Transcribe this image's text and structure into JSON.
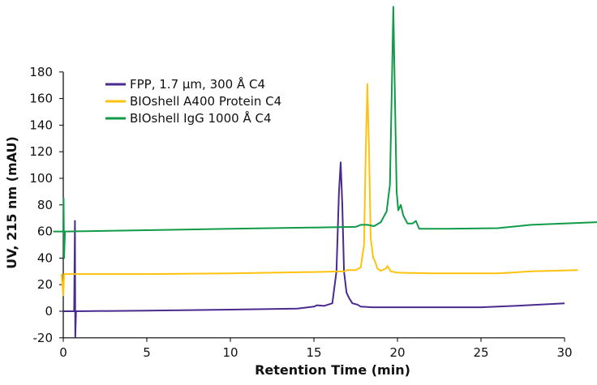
{
  "chart_data": {
    "type": "line",
    "title": "",
    "xlabel": "Retention Time (min)",
    "ylabel": "UV, 215 nm (mAU)",
    "xlim": [
      0,
      32
    ],
    "ylim": [
      -20,
      230
    ],
    "xticks": [
      "0",
      "5",
      "10",
      "15",
      "20",
      "25",
      "30"
    ],
    "yticks": [
      "-20",
      "0",
      "20",
      "40",
      "60",
      "80",
      "100",
      "120",
      "140",
      "160",
      "180"
    ],
    "grid": false,
    "legend_position": "top-left",
    "series": [
      {
        "name": "FPP, 1.7 µm, 300 Å C4",
        "color": "#4b2a8f",
        "points": [
          [
            0,
            0
          ],
          [
            0.65,
            0
          ],
          [
            0.7,
            68
          ],
          [
            0.72,
            -20
          ],
          [
            0.76,
            0
          ],
          [
            5,
            0.5
          ],
          [
            10,
            1.2
          ],
          [
            14,
            2
          ],
          [
            15,
            3.5
          ],
          [
            15.2,
            4.5
          ],
          [
            15.6,
            4
          ],
          [
            16.1,
            6
          ],
          [
            16.35,
            30
          ],
          [
            16.5,
            90
          ],
          [
            16.6,
            112
          ],
          [
            16.7,
            80
          ],
          [
            16.8,
            30
          ],
          [
            16.95,
            14
          ],
          [
            17.1,
            10
          ],
          [
            17.3,
            6
          ],
          [
            17.6,
            5
          ],
          [
            17.8,
            3.5
          ],
          [
            18.5,
            3
          ],
          [
            22,
            3
          ],
          [
            25,
            3
          ],
          [
            27,
            4
          ],
          [
            30,
            6
          ]
        ]
      },
      {
        "name": "BIOshell A400 Protein C4",
        "color": "#ffc20e",
        "points": [
          [
            -0.1,
            28
          ],
          [
            0,
            12
          ],
          [
            0.05,
            28
          ],
          [
            5,
            28
          ],
          [
            10,
            28.5
          ],
          [
            15,
            29.5
          ],
          [
            16.8,
            30
          ],
          [
            17,
            31
          ],
          [
            17.5,
            31
          ],
          [
            17.8,
            33
          ],
          [
            18.0,
            50
          ],
          [
            18.1,
            120
          ],
          [
            18.2,
            171
          ],
          [
            18.3,
            120
          ],
          [
            18.4,
            55
          ],
          [
            18.55,
            40
          ],
          [
            18.65,
            38
          ],
          [
            18.8,
            32
          ],
          [
            19.0,
            30.5
          ],
          [
            19.3,
            32
          ],
          [
            19.4,
            34
          ],
          [
            19.6,
            30
          ],
          [
            20,
            29
          ],
          [
            22,
            28.5
          ],
          [
            26,
            28.5
          ],
          [
            28,
            30
          ],
          [
            30.8,
            31
          ]
        ]
      },
      {
        "name": "BIOshell IgG 1000 Å C4",
        "color": "#119a48",
        "points": [
          [
            -0.6,
            60
          ],
          [
            0,
            60
          ],
          [
            0.02,
            85
          ],
          [
            0.05,
            40
          ],
          [
            0.1,
            60
          ],
          [
            5,
            61
          ],
          [
            10,
            62
          ],
          [
            15,
            63
          ],
          [
            17.5,
            63.5
          ],
          [
            17.8,
            65
          ],
          [
            18.2,
            65
          ],
          [
            18.6,
            64
          ],
          [
            19.0,
            67
          ],
          [
            19.35,
            75
          ],
          [
            19.55,
            95
          ],
          [
            19.65,
            160
          ],
          [
            19.75,
            229
          ],
          [
            19.85,
            160
          ],
          [
            19.95,
            90
          ],
          [
            20.05,
            76
          ],
          [
            20.2,
            80
          ],
          [
            20.35,
            72
          ],
          [
            20.6,
            66
          ],
          [
            20.9,
            66
          ],
          [
            21.1,
            68
          ],
          [
            21.3,
            62
          ],
          [
            23,
            62
          ],
          [
            26,
            62.5
          ],
          [
            28,
            65
          ],
          [
            32,
            67
          ]
        ]
      }
    ]
  }
}
